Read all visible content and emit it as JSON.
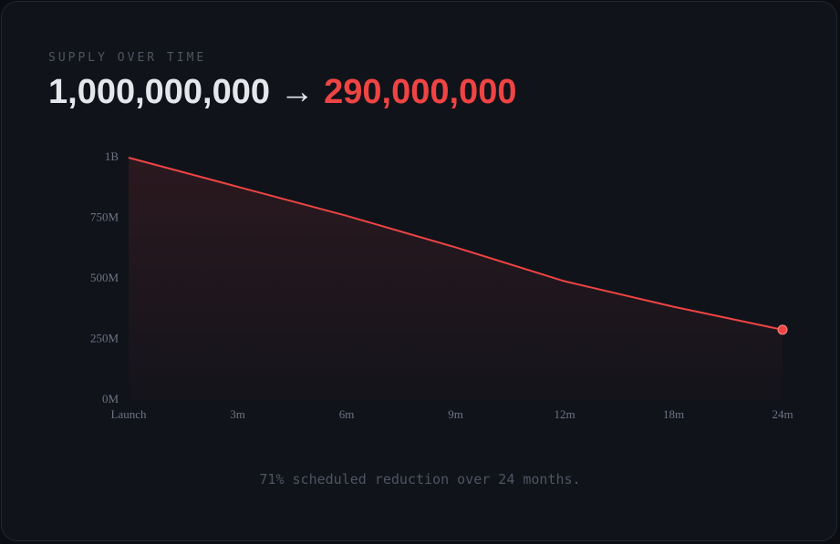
{
  "header": {
    "eyebrow": "SUPPLY OVER TIME",
    "from": "1,000,000,000",
    "arrow": "→",
    "to": "290,000,000"
  },
  "chart_data": {
    "type": "line",
    "categories": [
      "Launch",
      "3m",
      "6m",
      "9m",
      "12m",
      "18m",
      "24m"
    ],
    "series": [
      {
        "color": "#ef4444",
        "values": [
          1000000000,
          880000000,
          760000000,
          630000000,
          490000000,
          385000000,
          290000000
        ]
      }
    ],
    "ylim": [
      0,
      1000000000
    ],
    "yticks": [
      {
        "value": 0,
        "label": "0M"
      },
      {
        "value": 250000000,
        "label": "250M"
      },
      {
        "value": 500000000,
        "label": "500M"
      },
      {
        "value": 750000000,
        "label": "750M"
      },
      {
        "value": 1000000000,
        "label": "1B"
      }
    ],
    "area": true,
    "end_marker": true
  },
  "footnote": "71% scheduled reduction over 24 months."
}
